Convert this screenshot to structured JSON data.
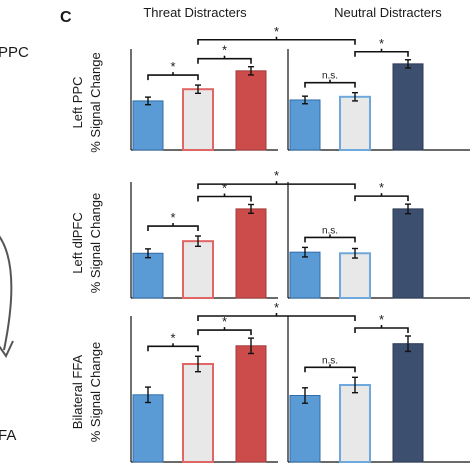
{
  "left_fragments": {
    "ppc": "PPC",
    "fa": "FA"
  },
  "panel_letter": "C",
  "group_titles": [
    "Threat Distracters",
    "Neutral Distracters"
  ],
  "colors": {
    "blue": "#5b9bd5",
    "blue_light_edge": "#6fa8dc",
    "light_fill": "#e8e8e8",
    "red_edge": "#e06666",
    "red": "#cc4b4b",
    "navy": "#3d4f6e",
    "arrow": "#555555"
  },
  "chart_data": [
    {
      "type": "bar",
      "row_label": "Left PPC",
      "ylabel": "% Signal Change",
      "groups": [
        {
          "name": "Threat Distracters",
          "values": [
            0.155,
            0.192,
            0.25
          ],
          "errors": [
            0.012,
            0.013,
            0.013
          ]
        },
        {
          "name": "Neutral Distracters",
          "values": [
            0.158,
            0.168,
            0.272
          ],
          "errors": [
            0.012,
            0.013,
            0.013
          ]
        }
      ],
      "ylim": [
        0,
        0.3
      ],
      "annotations": {
        "threat_pair1": "*",
        "threat_pair2": "*",
        "neutral_pair1": "n.s.",
        "neutral_pair2": "*",
        "across": "*"
      }
    },
    {
      "type": "bar",
      "row_label": "Left dlPFC",
      "ylabel": "% Signal Change",
      "groups": [
        {
          "name": "Threat Distracters",
          "values": [
            0.122,
            0.155,
            0.243
          ],
          "errors": [
            0.012,
            0.014,
            0.012
          ]
        },
        {
          "name": "Neutral Distracters",
          "values": [
            0.125,
            0.122,
            0.243
          ],
          "errors": [
            0.013,
            0.013,
            0.013
          ]
        }
      ],
      "ylim": [
        0,
        0.3
      ],
      "annotations": {
        "threat_pair1": "*",
        "threat_pair2": "*",
        "neutral_pair1": "n.s.",
        "neutral_pair2": "*",
        "across": "*"
      }
    },
    {
      "type": "bar",
      "row_label": "Bilateral FFA",
      "ylabel": "% Signal Change",
      "groups": [
        {
          "name": "Threat Distracters",
          "values": [
            0.192,
            0.28,
            0.332
          ],
          "errors": [
            0.022,
            0.022,
            0.022
          ]
        },
        {
          "name": "Neutral Distracters",
          "values": [
            0.19,
            0.22,
            0.338
          ],
          "errors": [
            0.022,
            0.022,
            0.022
          ]
        }
      ],
      "ylim": [
        0,
        0.4
      ],
      "annotations": {
        "threat_pair1": "*",
        "threat_pair2": "*",
        "neutral_pair1": "n.s.",
        "neutral_pair2": "*",
        "across": "*"
      }
    }
  ]
}
